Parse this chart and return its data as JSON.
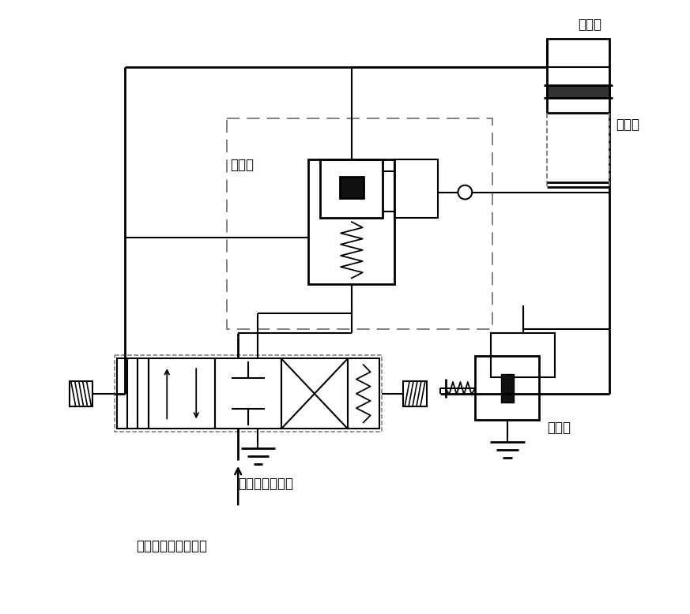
{
  "background": "#ffffff",
  "lc": "#000000",
  "gray": "#777777",
  "dark": "#111111",
  "labels": {
    "upper_cyl": "上油缸",
    "lower_cyl": "下油缸",
    "balance": "平衡阀",
    "dir_valve": "三位四通换向鄀",
    "relief": "溢流鄀",
    "pressure": "增压装置高压油输出"
  },
  "fig_w": 8.73,
  "fig_h": 7.78,
  "dpi": 100
}
